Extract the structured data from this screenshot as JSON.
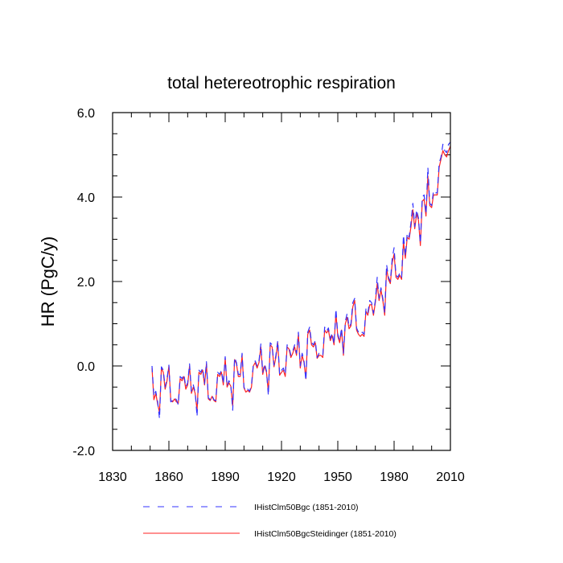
{
  "chart_data": {
    "type": "line",
    "title": "total hetereotrophic respiration",
    "xlabel": "",
    "ylabel": "HR  (PgC/y)",
    "xlim": [
      1830,
      2010
    ],
    "ylim": [
      -2.0,
      6.0
    ],
    "xticks": [
      1830,
      1860,
      1890,
      1920,
      1950,
      1980,
      2010
    ],
    "yticks": [
      -2.0,
      0.0,
      2.0,
      4.0,
      6.0
    ],
    "ytick_labels": [
      "-2.0",
      "0.0",
      "2.0",
      "4.0",
      "6.0"
    ],
    "grid": false,
    "legend_position": "bottom",
    "x": [
      1851,
      1852,
      1853,
      1854,
      1855,
      1856,
      1857,
      1858,
      1859,
      1860,
      1861,
      1862,
      1863,
      1864,
      1865,
      1866,
      1867,
      1868,
      1869,
      1870,
      1871,
      1872,
      1873,
      1874,
      1875,
      1876,
      1877,
      1878,
      1879,
      1880,
      1881,
      1882,
      1883,
      1884,
      1885,
      1886,
      1887,
      1888,
      1889,
      1890,
      1891,
      1892,
      1893,
      1894,
      1895,
      1896,
      1897,
      1898,
      1899,
      1900,
      1901,
      1902,
      1903,
      1904,
      1905,
      1906,
      1907,
      1908,
      1909,
      1910,
      1911,
      1912,
      1913,
      1914,
      1915,
      1916,
      1917,
      1918,
      1919,
      1920,
      1921,
      1922,
      1923,
      1924,
      1925,
      1926,
      1927,
      1928,
      1929,
      1930,
      1931,
      1932,
      1933,
      1934,
      1935,
      1936,
      1937,
      1938,
      1939,
      1940,
      1941,
      1942,
      1943,
      1944,
      1945,
      1946,
      1947,
      1948,
      1949,
      1950,
      1951,
      1952,
      1953,
      1954,
      1955,
      1956,
      1957,
      1958,
      1959,
      1960,
      1961,
      1962,
      1963,
      1964,
      1965,
      1966,
      1967,
      1968,
      1969,
      1970,
      1971,
      1972,
      1973,
      1974,
      1975,
      1976,
      1977,
      1978,
      1979,
      1980,
      1981,
      1982,
      1983,
      1984,
      1985,
      1986,
      1987,
      1988,
      1989,
      1990,
      1991,
      1992,
      1993,
      1994,
      1995,
      1996,
      1997,
      1998,
      1999,
      2000,
      2001,
      2002,
      2003,
      2004,
      2005,
      2006,
      2007,
      2008,
      2009,
      2010
    ],
    "series": [
      {
        "name": "IHistClm50Bgc (1851-2010)",
        "color": "#3333ff",
        "dash": "dashed",
        "values": [
          0.0,
          -0.72,
          -0.6,
          -0.85,
          -1.25,
          -0.02,
          -0.1,
          -0.5,
          -0.3,
          0.02,
          -0.85,
          -0.82,
          -0.75,
          -0.8,
          -0.92,
          -0.25,
          -0.3,
          -0.2,
          -0.5,
          -0.4,
          0.05,
          -0.6,
          -0.45,
          -0.62,
          -1.2,
          -0.1,
          -0.15,
          -0.05,
          -0.42,
          0.1,
          -0.75,
          -0.8,
          -0.7,
          -0.8,
          -0.82,
          -0.15,
          -0.2,
          -0.1,
          -0.42,
          0.22,
          -0.48,
          -0.35,
          -0.45,
          -1.05,
          0.2,
          0.08,
          -0.2,
          -0.2,
          0.3,
          -0.5,
          -0.6,
          -0.55,
          -0.6,
          -0.45,
          0.05,
          0.12,
          0.0,
          0.12,
          0.52,
          -0.15,
          0.05,
          -0.12,
          -0.7,
          0.55,
          0.5,
          0.02,
          0.25,
          0.6,
          -0.2,
          -0.1,
          -0.05,
          -0.2,
          0.5,
          0.45,
          0.25,
          0.35,
          0.5,
          0.3,
          0.8,
          0.0,
          0.3,
          0.12,
          -0.35,
          0.8,
          0.92,
          0.55,
          0.5,
          0.6,
          0.2,
          0.3,
          0.3,
          0.25,
          0.92,
          0.82,
          0.9,
          0.65,
          0.78,
          0.52,
          1.35,
          0.75,
          0.6,
          0.9,
          0.3,
          1.05,
          1.25,
          0.92,
          1.0,
          1.5,
          1.6,
          0.9,
          0.8,
          0.75,
          0.8,
          0.75,
          1.35,
          1.25,
          1.55,
          1.5,
          1.25,
          1.55,
          2.1,
          1.6,
          1.85,
          1.6,
          1.25,
          2.4,
          2.1,
          2.0,
          2.55,
          2.8,
          2.15,
          2.1,
          2.2,
          2.1,
          3.1,
          2.6,
          3.15,
          3.05,
          3.4,
          3.85,
          3.3,
          3.7,
          3.5,
          2.9,
          4.0,
          4.05,
          3.6,
          4.7,
          3.85,
          3.8,
          4.15,
          4.1,
          4.1,
          4.8,
          4.95,
          5.25,
          5.1,
          5.05,
          5.25,
          5.3
        ]
      },
      {
        "name": "IHistClm50BgcSteidinger (1851-2010)",
        "color": "#ff2222",
        "dash": "solid",
        "values": [
          -0.05,
          -0.8,
          -0.65,
          -0.9,
          -1.1,
          -0.05,
          -0.15,
          -0.55,
          -0.35,
          0.0,
          -0.82,
          -0.85,
          -0.78,
          -0.85,
          -0.88,
          -0.3,
          -0.35,
          -0.25,
          -0.55,
          -0.45,
          0.0,
          -0.65,
          -0.5,
          -0.65,
          -1.05,
          -0.15,
          -0.2,
          -0.1,
          -0.45,
          0.05,
          -0.78,
          -0.82,
          -0.72,
          -0.82,
          -0.85,
          -0.2,
          -0.25,
          -0.15,
          -0.45,
          0.18,
          -0.5,
          -0.4,
          -0.48,
          -0.95,
          0.15,
          0.05,
          -0.25,
          -0.25,
          0.25,
          -0.52,
          -0.62,
          -0.58,
          -0.62,
          -0.5,
          0.0,
          0.08,
          -0.05,
          0.08,
          0.45,
          -0.2,
          0.0,
          -0.15,
          -0.62,
          0.5,
          0.45,
          -0.02,
          0.2,
          0.55,
          -0.22,
          -0.15,
          -0.1,
          -0.25,
          0.45,
          0.4,
          0.2,
          0.3,
          0.45,
          0.25,
          0.75,
          -0.05,
          0.25,
          0.08,
          -0.3,
          0.75,
          0.85,
          0.5,
          0.45,
          0.55,
          0.18,
          0.25,
          0.25,
          0.2,
          0.85,
          0.78,
          0.85,
          0.6,
          0.72,
          0.5,
          1.25,
          0.7,
          0.55,
          0.85,
          0.25,
          1.0,
          1.15,
          0.88,
          0.95,
          1.4,
          1.55,
          0.85,
          0.75,
          0.7,
          0.75,
          0.7,
          1.3,
          1.2,
          1.45,
          1.45,
          1.2,
          1.5,
          1.95,
          1.55,
          1.8,
          1.55,
          1.2,
          2.3,
          2.05,
          1.95,
          2.45,
          2.65,
          2.1,
          2.05,
          2.15,
          2.05,
          2.95,
          2.55,
          3.05,
          3.0,
          3.3,
          3.7,
          3.25,
          3.6,
          3.45,
          2.85,
          3.9,
          3.95,
          3.55,
          4.5,
          3.8,
          3.75,
          4.05,
          4.05,
          4.05,
          4.7,
          4.9,
          5.1,
          5.0,
          4.95,
          5.1,
          5.2
        ]
      }
    ]
  }
}
